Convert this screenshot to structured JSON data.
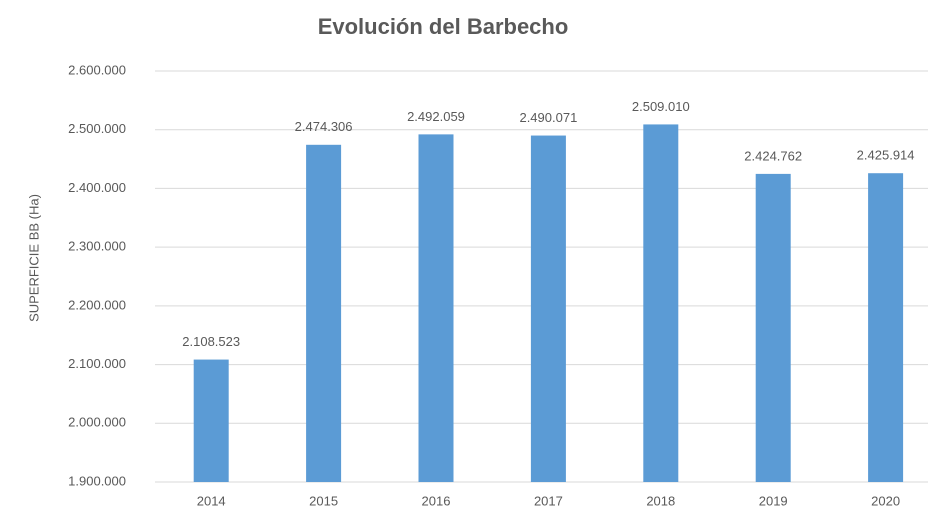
{
  "chart_data": {
    "type": "bar",
    "title": "Evolución del Barbecho",
    "y_label": "SUPERFICIE BB (Ha)",
    "categories": [
      "2014",
      "2015",
      "2016",
      "2017",
      "2018",
      "2019",
      "2020"
    ],
    "values": [
      2108523,
      2474306,
      2492059,
      2490071,
      2509010,
      2424762,
      2425914
    ],
    "value_labels": [
      "2.108.523",
      "2.474.306",
      "2.492.059",
      "2.490.071",
      "2.509.010",
      "2.424.762",
      "2.425.914"
    ],
    "color": "#5b9bd5",
    "ylim": [
      1900000,
      2600000
    ],
    "yticks": [
      {
        "value": 1900000,
        "label": "1.900.000"
      },
      {
        "value": 2000000,
        "label": "2.000.000"
      },
      {
        "value": 2100000,
        "label": "2.100.000"
      },
      {
        "value": 2200000,
        "label": "2.200.000"
      },
      {
        "value": 2300000,
        "label": "2.300.000"
      },
      {
        "value": 2400000,
        "label": "2.400.000"
      },
      {
        "value": 2500000,
        "label": "2.500.000"
      },
      {
        "value": 2600000,
        "label": "2.600.000"
      }
    ],
    "grid": true
  }
}
